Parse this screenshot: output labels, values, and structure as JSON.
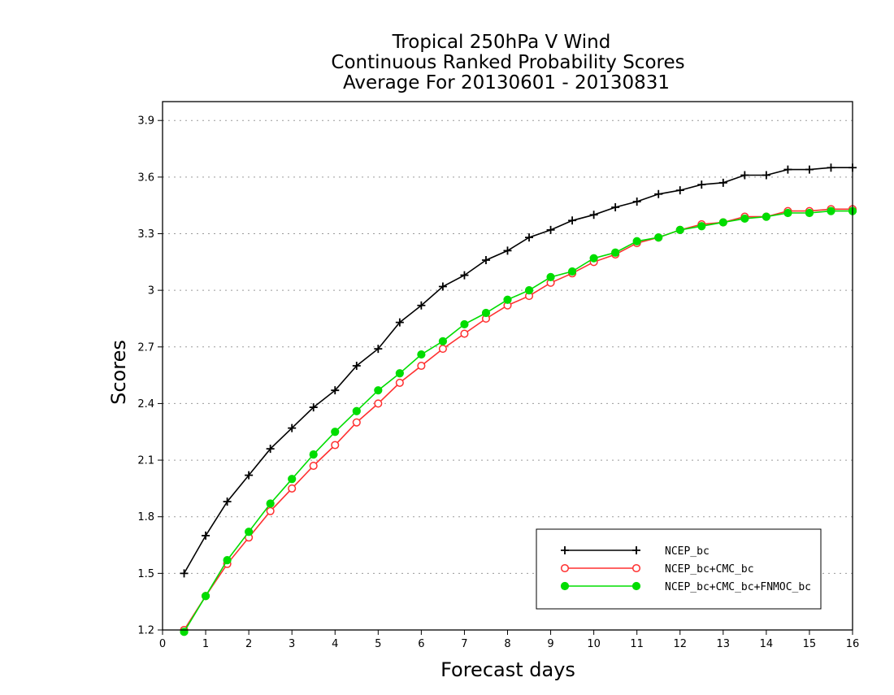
{
  "chart_data": {
    "type": "line",
    "title_lines": [
      "Tropical 250hPa V Wind",
      "Continuous Ranked Probability Scores",
      "Average For 20130601 - 20130831"
    ],
    "xlabel": "Forecast days",
    "ylabel": "Scores",
    "xlim": [
      0,
      16
    ],
    "ylim": [
      1.2,
      4.0
    ],
    "x_ticks": [
      0,
      1,
      2,
      3,
      4,
      5,
      6,
      7,
      8,
      9,
      10,
      11,
      12,
      13,
      14,
      15,
      16
    ],
    "y_ticks": [
      1.2,
      1.5,
      1.8,
      2.1,
      2.4,
      2.7,
      3,
      3.3,
      3.6,
      3.9
    ],
    "y_tick_labels": [
      "1.2",
      "1.5",
      "1.8",
      "2.1",
      "2.4",
      "2.7",
      "3",
      "3.3",
      "3.6",
      "3.9"
    ],
    "grid": "horizontal-dotted",
    "legend_position": "bottom-right",
    "series": [
      {
        "name": "NCEP_bc",
        "color": "#000000",
        "marker": "plus",
        "x": [
          0.5,
          1,
          1.5,
          2,
          2.5,
          3,
          3.5,
          4,
          4.5,
          5,
          5.5,
          6,
          6.5,
          7,
          7.5,
          8,
          8.5,
          9,
          9.5,
          10,
          10.5,
          11,
          11.5,
          12,
          12.5,
          13,
          13.5,
          14,
          14.5,
          15,
          15.5,
          16
        ],
        "y": [
          1.5,
          1.7,
          1.88,
          2.02,
          2.16,
          2.27,
          2.38,
          2.47,
          2.6,
          2.69,
          2.83,
          2.92,
          3.02,
          3.08,
          3.16,
          3.21,
          3.28,
          3.32,
          3.37,
          3.4,
          3.44,
          3.47,
          3.51,
          3.53,
          3.56,
          3.57,
          3.61,
          3.61,
          3.64,
          3.64,
          3.65,
          3.65
        ]
      },
      {
        "name": "NCEP_bc+CMC_bc",
        "color": "#ff3030",
        "marker": "open-circle",
        "x": [
          0.5,
          1,
          1.5,
          2,
          2.5,
          3,
          3.5,
          4,
          4.5,
          5,
          5.5,
          6,
          6.5,
          7,
          7.5,
          8,
          8.5,
          9,
          9.5,
          10,
          10.5,
          11,
          11.5,
          12,
          12.5,
          13,
          13.5,
          14,
          14.5,
          15,
          15.5,
          16
        ],
        "y": [
          1.2,
          1.38,
          1.55,
          1.69,
          1.83,
          1.95,
          2.07,
          2.18,
          2.3,
          2.4,
          2.51,
          2.6,
          2.69,
          2.77,
          2.85,
          2.92,
          2.97,
          3.04,
          3.09,
          3.15,
          3.19,
          3.25,
          3.28,
          3.32,
          3.35,
          3.36,
          3.39,
          3.39,
          3.42,
          3.42,
          3.43,
          3.43
        ]
      },
      {
        "name": "NCEP_bc+CMC_bc+FNMOC_bc",
        "color": "#00dd00",
        "marker": "filled-circle",
        "x": [
          0.5,
          1,
          1.5,
          2,
          2.5,
          3,
          3.5,
          4,
          4.5,
          5,
          5.5,
          6,
          6.5,
          7,
          7.5,
          8,
          8.5,
          9,
          9.5,
          10,
          10.5,
          11,
          11.5,
          12,
          12.5,
          13,
          13.5,
          14,
          14.5,
          15,
          15.5,
          16
        ],
        "y": [
          1.19,
          1.38,
          1.57,
          1.72,
          1.87,
          2.0,
          2.13,
          2.25,
          2.36,
          2.47,
          2.56,
          2.66,
          2.73,
          2.82,
          2.88,
          2.95,
          3.0,
          3.07,
          3.1,
          3.17,
          3.2,
          3.26,
          3.28,
          3.32,
          3.34,
          3.36,
          3.38,
          3.39,
          3.41,
          3.41,
          3.42,
          3.42
        ]
      }
    ]
  }
}
